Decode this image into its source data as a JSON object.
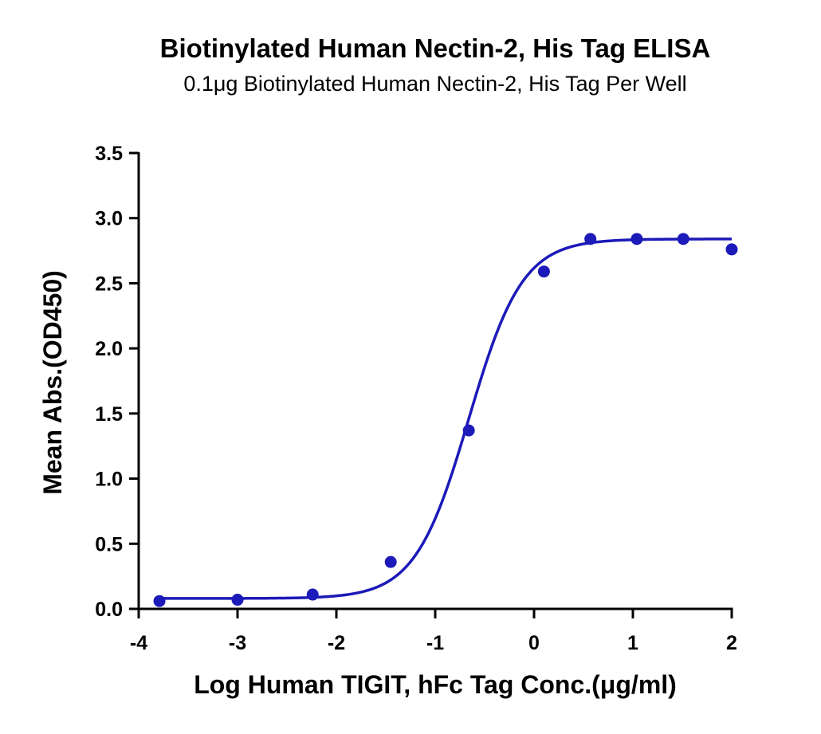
{
  "chart_data": {
    "type": "scatter",
    "title": "Biotinylated Human Nectin-2, His Tag ELISA",
    "subtitle": "0.1μg Biotinylated Human Nectin-2, His Tag Per Well",
    "xlabel": "Log Human TIGIT, hFc Tag Conc.(μg/ml)",
    "ylabel": "Mean Abs.(OD450)",
    "xlim": [
      -4,
      2
    ],
    "ylim": [
      0,
      3.5
    ],
    "xticks": [
      -4,
      -3,
      -2,
      -1,
      0,
      1,
      2
    ],
    "xtick_labels": [
      "-4",
      "-3",
      "-2",
      "-1",
      "0",
      "1",
      "2"
    ],
    "yticks": [
      0,
      0.5,
      1,
      1.5,
      2,
      2.5,
      3,
      3.5
    ],
    "ytick_labels": [
      "0.0",
      "0.5",
      "1.0",
      "1.5",
      "2.0",
      "2.5",
      "3.0",
      "3.5"
    ],
    "grid": false,
    "color": "#1c1ab8",
    "series": [
      {
        "points": [
          {
            "x": -3.79,
            "y": 0.06
          },
          {
            "x": -3.0,
            "y": 0.07
          },
          {
            "x": -2.24,
            "y": 0.11
          },
          {
            "x": -1.45,
            "y": 0.36
          },
          {
            "x": -0.66,
            "y": 1.37
          },
          {
            "x": 0.1,
            "y": 2.59
          },
          {
            "x": 0.57,
            "y": 2.84
          },
          {
            "x": 1.04,
            "y": 2.84
          },
          {
            "x": 1.51,
            "y": 2.84
          },
          {
            "x": 2.0,
            "y": 2.76
          }
        ],
        "fit": {
          "model": "4PL",
          "bottom": 0.08,
          "top": 2.84,
          "logEC50": -0.66,
          "hill": 1.6
        }
      }
    ]
  }
}
